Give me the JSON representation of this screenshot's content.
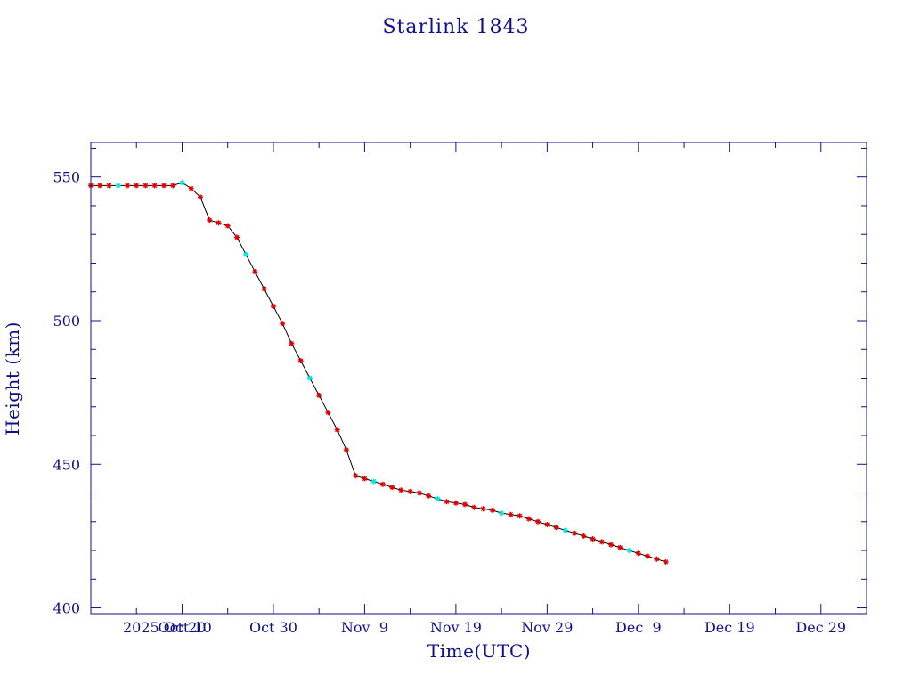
{
  "colors": {
    "text": "#0f0f8c",
    "frame": "#0f0f8c",
    "line": "#000000",
    "marker": "#e00000",
    "marker_alt": "#00e5e5",
    "background": "#ffffff"
  },
  "chart_data": {
    "type": "line",
    "title": "Starlink 1843",
    "xlabel": "Time(UTC)",
    "ylabel": "Height (km)",
    "x_tick_labels": [
      {
        "date": "2025-10-10",
        "label": "2025 Oct 10"
      },
      {
        "date": "2025-10-20",
        "label": "Oct 20"
      },
      {
        "date": "2025-10-30",
        "label": "Oct 30"
      },
      {
        "date": "2025-11-09",
        "label": "Nov  9"
      },
      {
        "date": "2025-11-19",
        "label": "Nov 19"
      },
      {
        "date": "2025-11-29",
        "label": "Nov 29"
      },
      {
        "date": "2025-12-09",
        "label": "Dec  9"
      },
      {
        "date": "2025-12-19",
        "label": "Dec 19"
      },
      {
        "date": "2025-12-29",
        "label": "Dec 29"
      }
    ],
    "xlim": [
      "2025-10-10",
      "2026-01-03"
    ],
    "ylim": [
      398,
      562
    ],
    "y_ticks": [
      400,
      450,
      500,
      550
    ],
    "grid": false,
    "series": [
      {
        "marker": "asterisk",
        "points": [
          [
            "2025-10-10",
            547
          ],
          [
            "2025-10-11",
            547
          ],
          [
            "2025-10-12",
            547
          ],
          [
            "2025-10-13",
            547
          ],
          [
            "2025-10-14",
            547
          ],
          [
            "2025-10-15",
            547
          ],
          [
            "2025-10-16",
            547
          ],
          [
            "2025-10-17",
            547
          ],
          [
            "2025-10-18",
            547
          ],
          [
            "2025-10-19",
            547
          ],
          [
            "2025-10-20",
            548
          ],
          [
            "2025-10-21",
            546
          ],
          [
            "2025-10-22",
            543
          ],
          [
            "2025-10-23",
            535
          ],
          [
            "2025-10-24",
            534
          ],
          [
            "2025-10-25",
            533
          ],
          [
            "2025-10-26",
            529
          ],
          [
            "2025-10-27",
            523
          ],
          [
            "2025-10-28",
            517
          ],
          [
            "2025-10-29",
            511
          ],
          [
            "2025-10-30",
            505
          ],
          [
            "2025-10-31",
            499
          ],
          [
            "2025-11-01",
            492
          ],
          [
            "2025-11-02",
            486
          ],
          [
            "2025-11-03",
            480
          ],
          [
            "2025-11-04",
            474
          ],
          [
            "2025-11-05",
            468
          ],
          [
            "2025-11-06",
            462
          ],
          [
            "2025-11-07",
            455
          ],
          [
            "2025-11-08",
            446
          ],
          [
            "2025-11-09",
            445
          ],
          [
            "2025-11-10",
            444
          ],
          [
            "2025-11-11",
            443
          ],
          [
            "2025-11-12",
            442
          ],
          [
            "2025-11-13",
            441
          ],
          [
            "2025-11-14",
            440.5
          ],
          [
            "2025-11-15",
            440
          ],
          [
            "2025-11-16",
            439
          ],
          [
            "2025-11-17",
            438
          ],
          [
            "2025-11-18",
            437
          ],
          [
            "2025-11-19",
            436.5
          ],
          [
            "2025-11-20",
            436
          ],
          [
            "2025-11-21",
            435
          ],
          [
            "2025-11-22",
            434.5
          ],
          [
            "2025-11-23",
            434
          ],
          [
            "2025-11-24",
            433
          ],
          [
            "2025-11-25",
            432.5
          ],
          [
            "2025-11-26",
            432
          ],
          [
            "2025-11-27",
            431
          ],
          [
            "2025-11-28",
            430
          ],
          [
            "2025-11-29",
            429
          ],
          [
            "2025-11-30",
            428
          ],
          [
            "2025-12-01",
            427
          ],
          [
            "2025-12-02",
            426
          ],
          [
            "2025-12-03",
            425
          ],
          [
            "2025-12-04",
            424
          ],
          [
            "2025-12-05",
            423
          ],
          [
            "2025-12-06",
            422
          ],
          [
            "2025-12-07",
            421
          ],
          [
            "2025-12-08",
            420
          ],
          [
            "2025-12-09",
            419
          ],
          [
            "2025-12-10",
            418
          ],
          [
            "2025-12-11",
            417
          ],
          [
            "2025-12-12",
            416
          ]
        ]
      }
    ]
  }
}
